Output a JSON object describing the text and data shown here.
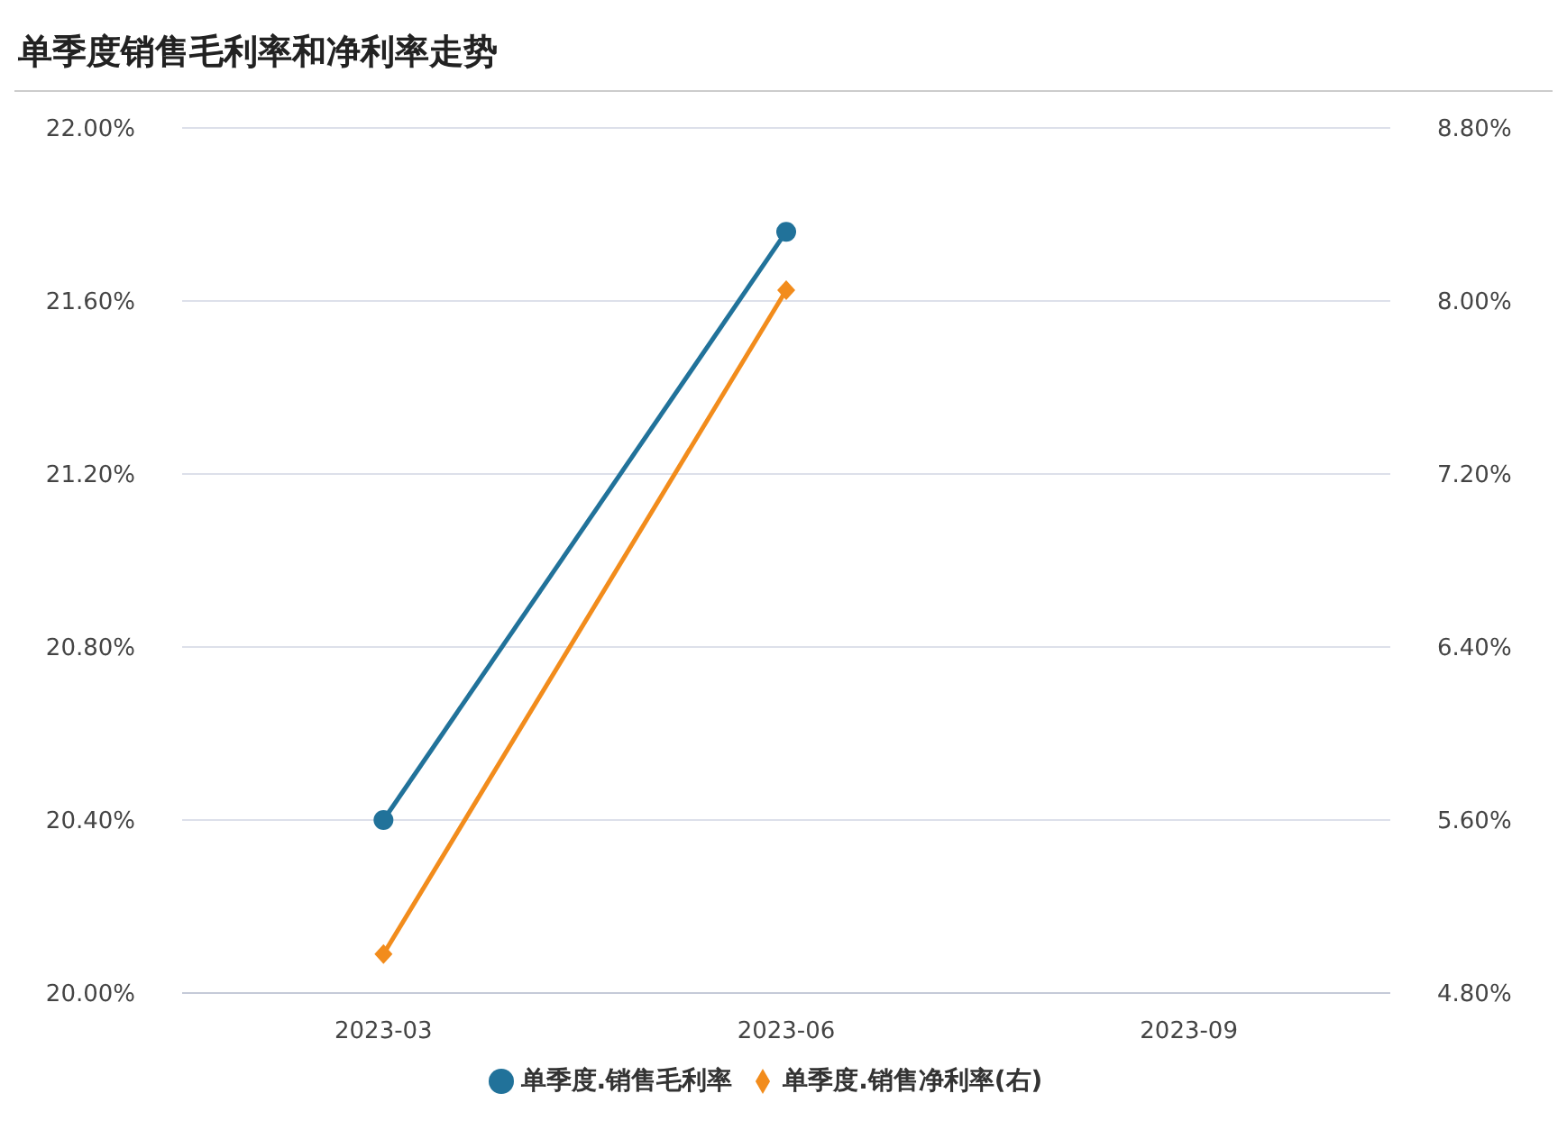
{
  "chart_data": {
    "type": "line",
    "title": "单季度销售毛利率和净利率走势",
    "categories": [
      "2023-03",
      "2023-06",
      "2023-09"
    ],
    "series": [
      {
        "name": "单季度.销售毛利率",
        "color": "#21729a",
        "values": [
          20.4,
          21.76,
          null
        ],
        "marker": "circle"
      },
      {
        "name": "单季度.销售净利率(右)",
        "color": "#f28c1c",
        "values": [
          4.98,
          8.05,
          null
        ],
        "axis": "y2",
        "marker": "diamond"
      }
    ],
    "ylim": [
      20.0,
      22.0
    ],
    "yticks": [
      {
        "value": 20.0,
        "label": "20.00%"
      },
      {
        "value": 20.4,
        "label": "20.40%"
      },
      {
        "value": 20.8,
        "label": "20.80%"
      },
      {
        "value": 21.2,
        "label": "21.20%"
      },
      {
        "value": 21.6,
        "label": "21.60%"
      },
      {
        "value": 22.0,
        "label": "22.00%"
      }
    ],
    "y2lim": [
      4.8,
      8.8
    ],
    "y2ticks": [
      {
        "value": 4.8,
        "label": "4.80%"
      },
      {
        "value": 5.6,
        "label": "5.60%"
      },
      {
        "value": 6.4,
        "label": "6.40%"
      },
      {
        "value": 7.2,
        "label": "7.20%"
      },
      {
        "value": 8.0,
        "label": "8.00%"
      },
      {
        "value": 8.8,
        "label": "8.80%"
      }
    ],
    "grid": "y",
    "legend": "bottom"
  }
}
